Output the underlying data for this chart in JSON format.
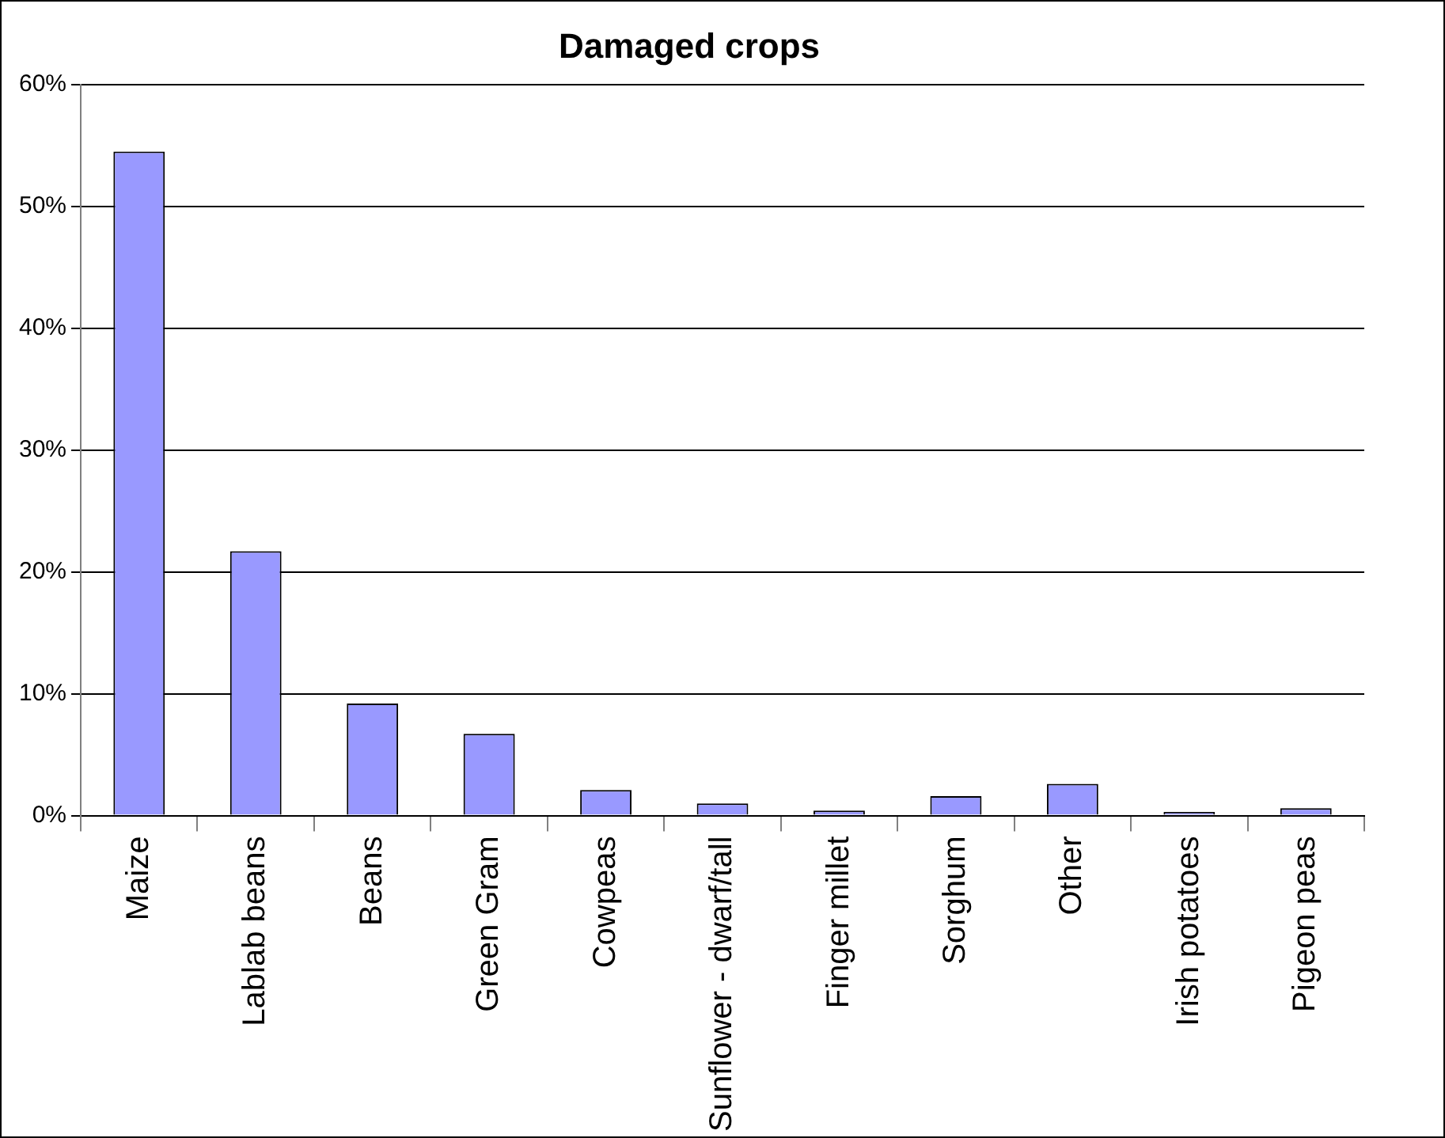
{
  "chart_data": {
    "type": "bar",
    "title": "Damaged crops",
    "categories": [
      "Maize",
      "Lablab beans",
      "Beans",
      "Green Gram",
      "Cowpeas",
      "Sunflower - dwarf/tall",
      "Finger millet",
      "Sorghum",
      "Other",
      "Irish potatoes",
      "Pigeon peas"
    ],
    "values": [
      54.5,
      21.7,
      9.2,
      6.7,
      2.1,
      1.0,
      0.4,
      1.6,
      2.6,
      0.3,
      0.6
    ],
    "color": "#9999ff",
    "ylim": [
      0,
      60
    ],
    "yticks": [
      {
        "value": 0,
        "label": "0%"
      },
      {
        "value": 10,
        "label": "10%"
      },
      {
        "value": 20,
        "label": "20%"
      },
      {
        "value": 30,
        "label": "30%"
      },
      {
        "value": 40,
        "label": "40%"
      },
      {
        "value": 50,
        "label": "50%"
      },
      {
        "value": 60,
        "label": "60%"
      }
    ],
    "grid": "y",
    "legend": false
  }
}
